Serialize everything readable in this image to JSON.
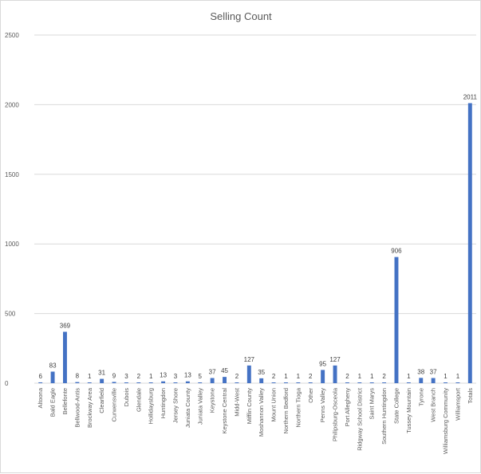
{
  "chart_data": {
    "type": "bar",
    "title": "Selling Count",
    "xlabel": "",
    "ylabel": "",
    "ylim": [
      0,
      2500
    ],
    "yticks": [
      0,
      500,
      1000,
      1500,
      2000,
      2500
    ],
    "grid": true,
    "legend": "none",
    "bar_color": "#4472c4",
    "categories": [
      "Altoona",
      "Bald Eagle",
      "Bellefonte",
      "Bellwood-Antis",
      "Brockway Area",
      "Clearfield",
      "Curwensville",
      "Dubois",
      "Glendale",
      "Hollidaysburg",
      "Huntingdon",
      "Jersey Shore",
      "Juniata County",
      "Juniata Valley",
      "Keystone",
      "Keystone Central",
      "Midd-West",
      "Mifflin County",
      "Moshannon Valley",
      "Mount Union",
      "Northern Bedford",
      "Northern Tioga",
      "Other",
      "Penns Valley",
      "Philipsburg-Osceola",
      "Port Allegheny",
      "Ridgway School District",
      "Saint Marys",
      "Southern Huntingdon",
      "State College",
      "Tussey Mountain",
      "Tyrone",
      "West Branch",
      "Williamsburg Community",
      "Williamsport",
      "Totals"
    ],
    "values": [
      6,
      83,
      369,
      8,
      1,
      31,
      9,
      3,
      2,
      1,
      13,
      3,
      13,
      5,
      37,
      45,
      2,
      127,
      35,
      2,
      1,
      1,
      2,
      95,
      127,
      2,
      1,
      1,
      2,
      906,
      1,
      38,
      37,
      1,
      1,
      2011
    ]
  }
}
